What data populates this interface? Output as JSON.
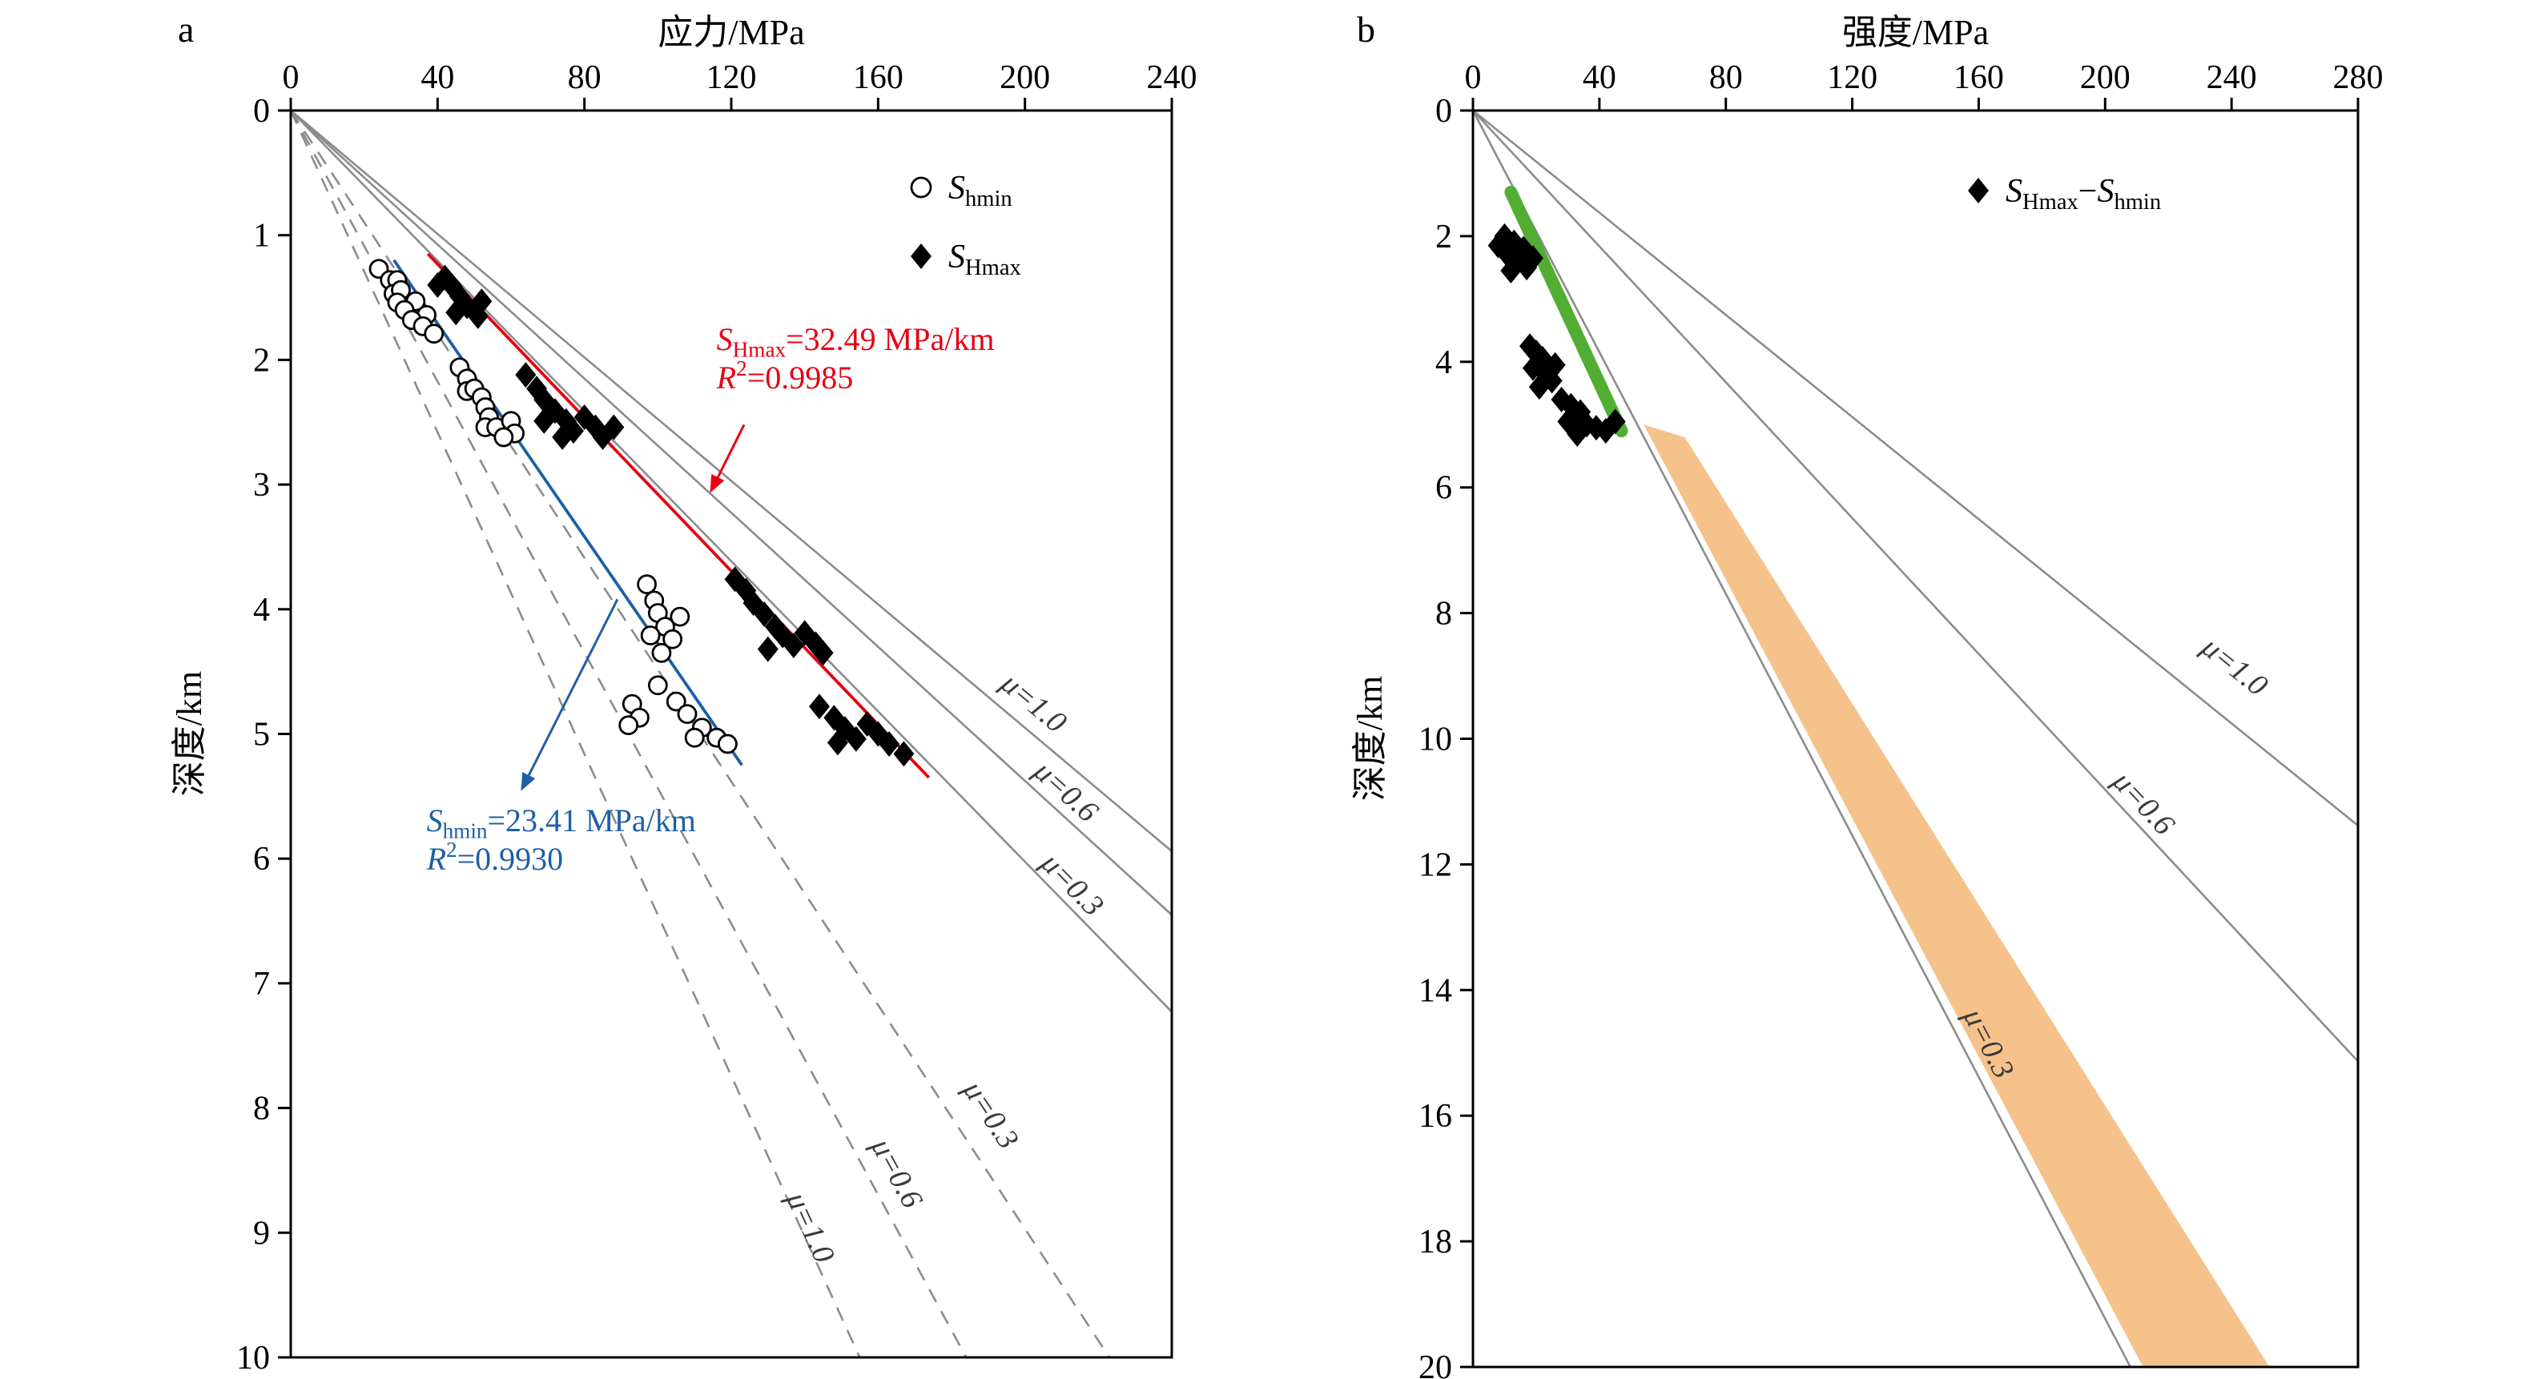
{
  "figure": {
    "background": "#ffffff"
  },
  "chart_data": [
    {
      "id": "a",
      "type": "scatter",
      "panel_label": "a",
      "x_axis": {
        "title": "应力/MPa",
        "min": 0,
        "max": 240,
        "ticks": [
          0,
          40,
          80,
          120,
          160,
          200,
          240
        ],
        "position": "top"
      },
      "y_axis": {
        "title": "深度/km",
        "min": 0,
        "max": 10,
        "ticks": [
          0,
          1,
          2,
          3,
          4,
          5,
          6,
          7,
          8,
          9,
          10
        ],
        "inverted": true
      },
      "series": [
        {
          "name": "shmin",
          "legend": [
            {
              "t": "S",
              "i": 1
            },
            {
              "t": "hmin",
              "sub": 1
            }
          ],
          "marker": "circle",
          "points": [
            [
              24,
              1.27
            ],
            [
              27,
              1.36
            ],
            [
              29,
              1.36
            ],
            [
              28,
              1.47
            ],
            [
              30,
              1.44
            ],
            [
              34,
              1.53
            ],
            [
              29,
              1.54
            ],
            [
              31,
              1.6
            ],
            [
              37,
              1.64
            ],
            [
              33,
              1.68
            ],
            [
              36,
              1.73
            ],
            [
              39,
              1.79
            ],
            [
              46,
              2.06
            ],
            [
              48,
              2.15
            ],
            [
              48,
              2.25
            ],
            [
              50,
              2.23
            ],
            [
              52,
              2.3
            ],
            [
              53,
              2.38
            ],
            [
              54,
              2.46
            ],
            [
              53,
              2.54
            ],
            [
              56,
              2.54
            ],
            [
              60,
              2.49
            ],
            [
              61,
              2.59
            ],
            [
              58,
              2.62
            ],
            [
              97,
              3.8
            ],
            [
              99,
              3.93
            ],
            [
              100,
              4.03
            ],
            [
              106,
              4.06
            ],
            [
              102,
              4.14
            ],
            [
              98,
              4.21
            ],
            [
              104,
              4.24
            ],
            [
              101,
              4.35
            ],
            [
              100,
              4.61
            ],
            [
              105,
              4.74
            ],
            [
              93,
              4.76
            ],
            [
              108,
              4.84
            ],
            [
              95,
              4.87
            ],
            [
              92,
              4.93
            ],
            [
              112,
              4.95
            ],
            [
              110,
              5.03
            ],
            [
              116,
              5.03
            ],
            [
              119,
              5.08
            ]
          ]
        },
        {
          "name": "shmax",
          "legend": [
            {
              "t": "S",
              "i": 1
            },
            {
              "t": "Hmax",
              "sub": 1
            }
          ],
          "marker": "diamond",
          "points": [
            [
              42,
              1.34
            ],
            [
              44,
              1.41
            ],
            [
              46,
              1.49
            ],
            [
              48,
              1.57
            ],
            [
              51,
              1.65
            ],
            [
              45,
              1.62
            ],
            [
              52,
              1.53
            ],
            [
              40,
              1.4
            ],
            [
              64,
              2.12
            ],
            [
              67,
              2.23
            ],
            [
              69,
              2.32
            ],
            [
              72,
              2.41
            ],
            [
              75,
              2.49
            ],
            [
              77,
              2.57
            ],
            [
              80,
              2.46
            ],
            [
              83,
              2.54
            ],
            [
              85,
              2.62
            ],
            [
              74,
              2.62
            ],
            [
              69,
              2.49
            ],
            [
              88,
              2.54
            ],
            [
              121,
              3.76
            ],
            [
              124,
              3.85
            ],
            [
              126,
              3.95
            ],
            [
              129,
              4.04
            ],
            [
              132,
              4.14
            ],
            [
              134,
              4.21
            ],
            [
              137,
              4.29
            ],
            [
              140,
              4.19
            ],
            [
              143,
              4.28
            ],
            [
              145,
              4.35
            ],
            [
              130,
              4.32
            ],
            [
              144,
              4.78
            ],
            [
              148,
              4.87
            ],
            [
              151,
              4.96
            ],
            [
              154,
              5.04
            ],
            [
              157,
              4.92
            ],
            [
              160,
              5.0
            ],
            [
              163,
              5.08
            ],
            [
              167,
              5.16
            ],
            [
              149,
              5.07
            ]
          ]
        }
      ],
      "fit_lines": [
        {
          "name": "shmax-fit-line",
          "color": "#e60012",
          "gradient_mpa_per_km": 32.49,
          "r2": 0.9985,
          "depth_range": [
            1.15,
            5.35
          ]
        },
        {
          "name": "shmin-fit-line",
          "color": "#1e5fa6",
          "gradient_mpa_per_km": 23.41,
          "r2": 0.993,
          "depth_range": [
            1.2,
            5.25
          ]
        }
      ],
      "friction_lines": [
        {
          "mu": 1.0,
          "label": "μ=1.0",
          "style": "solid",
          "gradient_mpa_per_km": 40.4,
          "label_at": [
            193,
            4.62
          ]
        },
        {
          "mu": 0.6,
          "label": "μ=0.6",
          "style": "solid",
          "gradient_mpa_per_km": 37.2,
          "label_at": [
            202,
            5.32
          ]
        },
        {
          "mu": 0.3,
          "label": "μ=0.3",
          "style": "solid",
          "gradient_mpa_per_km": 33.2,
          "label_at": [
            204,
            6.05
          ]
        },
        {
          "mu": 0.3,
          "label": "μ=0.3",
          "style": "dashed",
          "gradient_mpa_per_km": 22.3,
          "label_at": [
            183,
            7.85
          ]
        },
        {
          "mu": 0.6,
          "label": "μ=0.6",
          "style": "dashed",
          "gradient_mpa_per_km": 18.4,
          "label_at": [
            158,
            8.3
          ]
        },
        {
          "mu": 1.0,
          "label": "μ=1.0",
          "style": "dashed",
          "gradient_mpa_per_km": 15.5,
          "label_at": [
            135,
            8.72
          ]
        }
      ],
      "annotations": [
        {
          "name": "shmax-gradient-label",
          "color": "#e60012",
          "at": [
            116,
            1.92
          ],
          "lines": [
            [
              {
                "t": "S",
                "i": 1
              },
              {
                "t": "Hmax",
                "sub": 1
              },
              {
                "t": "=32.49 MPa/km"
              }
            ],
            [
              {
                "t": "R",
                "i": 1
              },
              {
                "t": "2",
                "sup": 1
              },
              {
                "t": "=0.9985"
              }
            ]
          ],
          "arrow": {
            "from": [
              123.5,
              2.52
            ],
            "to": [
              114.5,
              3.05
            ]
          }
        },
        {
          "name": "shmin-gradient-label",
          "color": "#1e5fa6",
          "at": [
            37,
            5.78
          ],
          "lines": [
            [
              {
                "t": "S",
                "i": 1
              },
              {
                "t": "hmin",
                "sub": 1
              },
              {
                "t": "=23.41 MPa/km"
              }
            ],
            [
              {
                "t": "R",
                "i": 1
              },
              {
                "t": "2",
                "sup": 1
              },
              {
                "t": "=0.9930"
              }
            ]
          ],
          "arrow": {
            "from": [
              89,
              3.92
            ],
            "to": [
              63,
              5.44
            ]
          }
        }
      ]
    },
    {
      "id": "b",
      "type": "scatter",
      "panel_label": "b",
      "x_axis": {
        "title": "强度/MPa",
        "min": 0,
        "max": 280,
        "ticks": [
          0,
          40,
          80,
          120,
          160,
          200,
          240,
          280
        ],
        "position": "top"
      },
      "y_axis": {
        "title": "深度/km",
        "min": 0,
        "max": 20,
        "ticks": [
          0,
          2,
          4,
          6,
          8,
          10,
          12,
          14,
          16,
          18,
          20
        ],
        "inverted": true
      },
      "series": [
        {
          "name": "shmax-minus-shmin",
          "legend": [
            {
              "t": "S",
              "i": 1
            },
            {
              "t": "Hmax",
              "sub": 1
            },
            {
              "t": "−"
            },
            {
              "t": "S",
              "i": 1
            },
            {
              "t": "hmin",
              "sub": 1
            }
          ],
          "marker": "diamond",
          "points": [
            [
              10,
              2.0
            ],
            [
              13,
              2.1
            ],
            [
              16,
              2.2
            ],
            [
              11,
              2.3
            ],
            [
              14,
              2.4
            ],
            [
              17,
              2.5
            ],
            [
              19,
              2.35
            ],
            [
              8,
              2.15
            ],
            [
              12,
              2.55
            ],
            [
              18,
              3.75
            ],
            [
              20,
              3.85
            ],
            [
              22,
              3.95
            ],
            [
              19,
              4.1
            ],
            [
              23,
              4.2
            ],
            [
              25,
              4.3
            ],
            [
              21,
              4.4
            ],
            [
              26,
              4.05
            ],
            [
              28,
              4.6
            ],
            [
              31,
              4.7
            ],
            [
              34,
              4.8
            ],
            [
              30,
              4.95
            ],
            [
              36,
              5.0
            ],
            [
              39,
              5.05
            ],
            [
              42,
              5.1
            ],
            [
              33,
              5.15
            ],
            [
              45,
              4.95
            ]
          ]
        }
      ],
      "friction_lines": [
        {
          "mu": 1.0,
          "label": "μ=1.0",
          "style": "solid",
          "gradient_mpa_per_km": 24.6,
          "label_at": [
            230,
            8.6
          ]
        },
        {
          "mu": 0.6,
          "label": "μ=0.6",
          "style": "solid",
          "gradient_mpa_per_km": 18.5,
          "label_at": [
            202,
            10.7
          ]
        },
        {
          "mu": 0.3,
          "label": "μ=0.3",
          "style": "solid",
          "gradient_mpa_per_km": 10.4,
          "label_at": [
            155,
            14.4
          ]
        }
      ],
      "highlight_line": {
        "name": "green-trend-line",
        "color": "#52ae32",
        "width": 16,
        "from": [
          12,
          1.3
        ],
        "to": [
          47,
          5.1
        ]
      },
      "highlight_band": {
        "name": "orange-band",
        "color": "#f6c28b",
        "points": [
          [
            54,
            5.0
          ],
          [
            67,
            5.2
          ],
          [
            252,
            20
          ],
          [
            212,
            20
          ]
        ]
      }
    }
  ]
}
